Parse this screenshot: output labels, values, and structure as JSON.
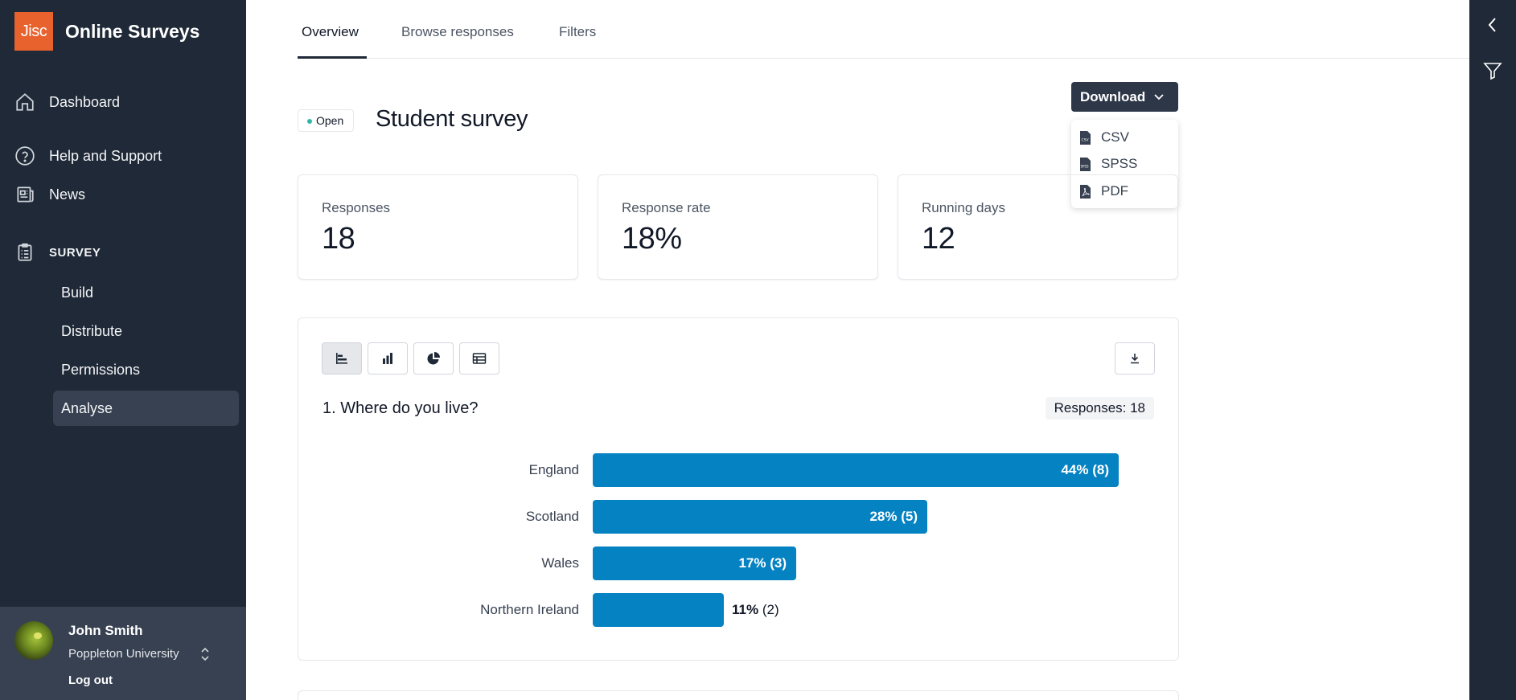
{
  "app": {
    "logo_text": "Jisc",
    "name": "Online Surveys",
    "brand_color": "#e8622d"
  },
  "sidebar": {
    "nav": [
      {
        "label": "Dashboard",
        "icon": "home-icon"
      },
      {
        "label": "Help and Support",
        "icon": "help-circle-icon"
      },
      {
        "label": "News",
        "icon": "newspaper-icon"
      }
    ],
    "survey_section": {
      "label": "SURVEY",
      "icon": "clipboard-icon",
      "items": [
        {
          "label": "Build"
        },
        {
          "label": "Distribute"
        },
        {
          "label": "Permissions"
        },
        {
          "label": "Analyse",
          "active": true
        }
      ]
    }
  },
  "user": {
    "name": "John Smith",
    "organisation": "Poppleton University",
    "logout_label": "Log out"
  },
  "tabs": [
    {
      "label": "Overview",
      "active": true
    },
    {
      "label": "Browse responses"
    },
    {
      "label": "Filters"
    }
  ],
  "survey": {
    "status": "Open",
    "status_color": "#2fb7a5",
    "title": "Student survey"
  },
  "download": {
    "label": "Download",
    "options": [
      "CSV",
      "SPSS",
      "PDF"
    ]
  },
  "stats": [
    {
      "label": "Responses",
      "value": "18"
    },
    {
      "label": "Response rate",
      "value": "18%"
    },
    {
      "label": "Running days",
      "value": "12"
    }
  ],
  "chart_controls": {
    "views": [
      "horizontal-bar-icon",
      "vertical-bar-icon",
      "pie-chart-icon",
      "table-icon"
    ],
    "active_view": "horizontal-bar-icon"
  },
  "question": {
    "title": "1. Where do you live?",
    "responses_label": "Responses: 18"
  },
  "chart_data": {
    "type": "bar",
    "orientation": "horizontal",
    "categories": [
      "England",
      "Scotland",
      "Wales",
      "Northern Ireland"
    ],
    "values": [
      44,
      28,
      17,
      11
    ],
    "counts": [
      8,
      5,
      3,
      2
    ],
    "value_labels": [
      "44%",
      "28%",
      "17%",
      "11%"
    ],
    "count_labels": [
      "(8)",
      "(5)",
      "(3)",
      "(2)"
    ],
    "xlim": [
      0,
      100
    ],
    "bar_color": "#0582c2",
    "grid": false
  }
}
